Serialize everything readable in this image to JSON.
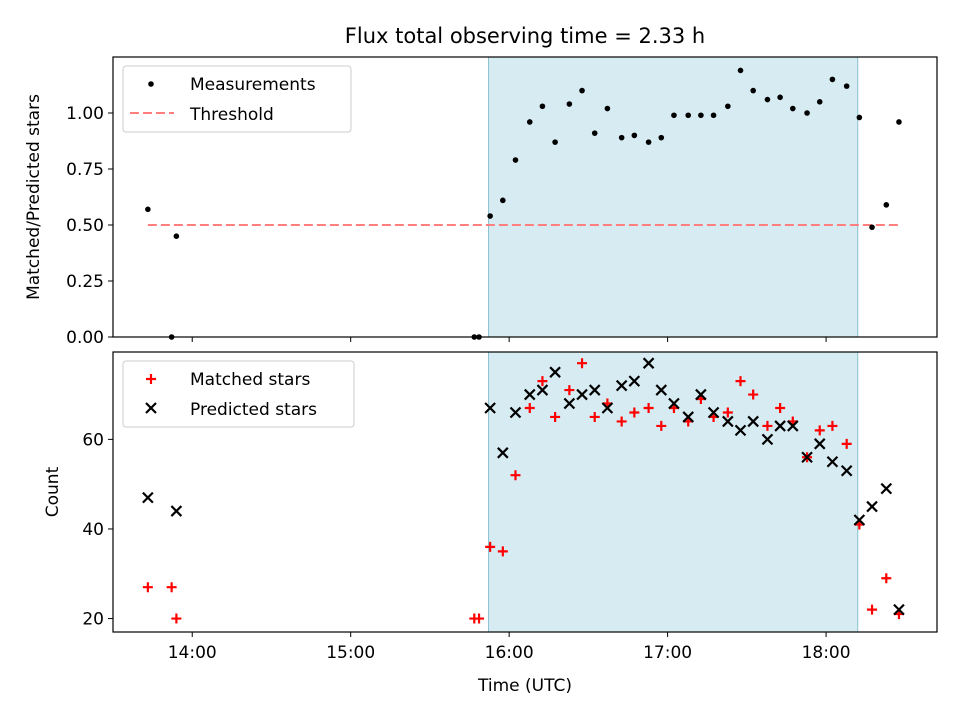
{
  "chart_data": [
    {
      "type": "scatter",
      "title": "Flux total observing time = 2.33 h",
      "xlabel": "",
      "ylabel": "Matched/Predicted stars",
      "xlim": [
        13.5,
        18.7
      ],
      "ylim": [
        0,
        1.25
      ],
      "yticks": [
        0.0,
        0.25,
        0.5,
        0.75,
        1.0
      ],
      "ytick_labels": [
        "0.00",
        "0.25",
        "0.50",
        "0.75",
        "1.00"
      ],
      "shaded_span": [
        15.87,
        18.2
      ],
      "shade_color": "#add8e6",
      "legend": {
        "placement": "upper-left",
        "entries": [
          "Measurements",
          "Threshold"
        ]
      },
      "series": [
        {
          "name": "Measurements",
          "marker": "dot",
          "color": "#000000",
          "points": [
            [
              13.72,
              0.57
            ],
            [
              13.87,
              0.0
            ],
            [
              13.9,
              0.45
            ],
            [
              15.78,
              0.0
            ],
            [
              15.81,
              0.0
            ],
            [
              15.88,
              0.54
            ],
            [
              15.96,
              0.61
            ],
            [
              16.04,
              0.79
            ],
            [
              16.13,
              0.96
            ],
            [
              16.21,
              1.03
            ],
            [
              16.29,
              0.87
            ],
            [
              16.38,
              1.04
            ],
            [
              16.46,
              1.1
            ],
            [
              16.54,
              0.91
            ],
            [
              16.62,
              1.02
            ],
            [
              16.71,
              0.89
            ],
            [
              16.79,
              0.9
            ],
            [
              16.88,
              0.87
            ],
            [
              16.96,
              0.89
            ],
            [
              17.04,
              0.99
            ],
            [
              17.13,
              0.99
            ],
            [
              17.21,
              0.99
            ],
            [
              17.29,
              0.99
            ],
            [
              17.38,
              1.03
            ],
            [
              17.46,
              1.19
            ],
            [
              17.54,
              1.1
            ],
            [
              17.63,
              1.06
            ],
            [
              17.71,
              1.07
            ],
            [
              17.79,
              1.02
            ],
            [
              17.88,
              1.0
            ],
            [
              17.96,
              1.05
            ],
            [
              18.04,
              1.15
            ],
            [
              18.13,
              1.12
            ],
            [
              18.21,
              0.98
            ],
            [
              18.29,
              0.49
            ],
            [
              18.38,
              0.59
            ],
            [
              18.46,
              0.96
            ]
          ]
        },
        {
          "name": "Threshold",
          "marker": "dashed-line",
          "color": "#ff7f7f",
          "points": [
            [
              13.72,
              0.5
            ],
            [
              18.46,
              0.5
            ]
          ]
        }
      ]
    },
    {
      "type": "scatter",
      "title": "",
      "xlabel": "Time (UTC)",
      "ylabel": "Count",
      "xlim": [
        13.5,
        18.7
      ],
      "ylim": [
        17,
        79.5
      ],
      "yticks": [
        20,
        40,
        60
      ],
      "ytick_labels": [
        "20",
        "40",
        "60"
      ],
      "xticks": [
        14,
        15,
        16,
        17,
        18
      ],
      "xtick_labels": [
        "14:00",
        "15:00",
        "16:00",
        "17:00",
        "18:00"
      ],
      "shaded_span": [
        15.87,
        18.2
      ],
      "shade_color": "#add8e6",
      "legend": {
        "placement": "upper-left",
        "entries": [
          "Matched stars",
          "Predicted stars"
        ]
      },
      "series": [
        {
          "name": "Matched stars",
          "marker": "plus",
          "color": "#ff0000",
          "points": [
            [
              13.72,
              27
            ],
            [
              13.87,
              27
            ],
            [
              13.9,
              20
            ],
            [
              15.78,
              20
            ],
            [
              15.81,
              20
            ],
            [
              15.88,
              36
            ],
            [
              15.96,
              35
            ],
            [
              16.04,
              52
            ],
            [
              16.13,
              67
            ],
            [
              16.21,
              73
            ],
            [
              16.29,
              65
            ],
            [
              16.38,
              71
            ],
            [
              16.46,
              77
            ],
            [
              16.54,
              65
            ],
            [
              16.62,
              68
            ],
            [
              16.71,
              64
            ],
            [
              16.79,
              66
            ],
            [
              16.88,
              67
            ],
            [
              16.96,
              63
            ],
            [
              17.04,
              67
            ],
            [
              17.13,
              64
            ],
            [
              17.21,
              69
            ],
            [
              17.29,
              65
            ],
            [
              17.38,
              66
            ],
            [
              17.46,
              73
            ],
            [
              17.54,
              70
            ],
            [
              17.63,
              63
            ],
            [
              17.71,
              67
            ],
            [
              17.79,
              64
            ],
            [
              17.88,
              56
            ],
            [
              17.96,
              62
            ],
            [
              18.04,
              63
            ],
            [
              18.13,
              59
            ],
            [
              18.21,
              41
            ],
            [
              18.29,
              22
            ],
            [
              18.38,
              29
            ],
            [
              18.46,
              21
            ]
          ]
        },
        {
          "name": "Predicted stars",
          "marker": "x",
          "color": "#000000",
          "points": [
            [
              13.72,
              47
            ],
            [
              13.9,
              44
            ],
            [
              15.88,
              67
            ],
            [
              15.96,
              57
            ],
            [
              16.04,
              66
            ],
            [
              16.13,
              70
            ],
            [
              16.21,
              71
            ],
            [
              16.29,
              75
            ],
            [
              16.38,
              68
            ],
            [
              16.46,
              70
            ],
            [
              16.54,
              71
            ],
            [
              16.62,
              67
            ],
            [
              16.71,
              72
            ],
            [
              16.79,
              73
            ],
            [
              16.88,
              77
            ],
            [
              16.96,
              71
            ],
            [
              17.04,
              68
            ],
            [
              17.13,
              65
            ],
            [
              17.21,
              70
            ],
            [
              17.29,
              66
            ],
            [
              17.38,
              64
            ],
            [
              17.46,
              62
            ],
            [
              17.54,
              64
            ],
            [
              17.63,
              60
            ],
            [
              17.71,
              63
            ],
            [
              17.79,
              63
            ],
            [
              17.88,
              56
            ],
            [
              17.96,
              59
            ],
            [
              18.04,
              55
            ],
            [
              18.13,
              53
            ],
            [
              18.21,
              42
            ],
            [
              18.29,
              45
            ],
            [
              18.38,
              49
            ],
            [
              18.46,
              22
            ]
          ]
        }
      ]
    }
  ]
}
